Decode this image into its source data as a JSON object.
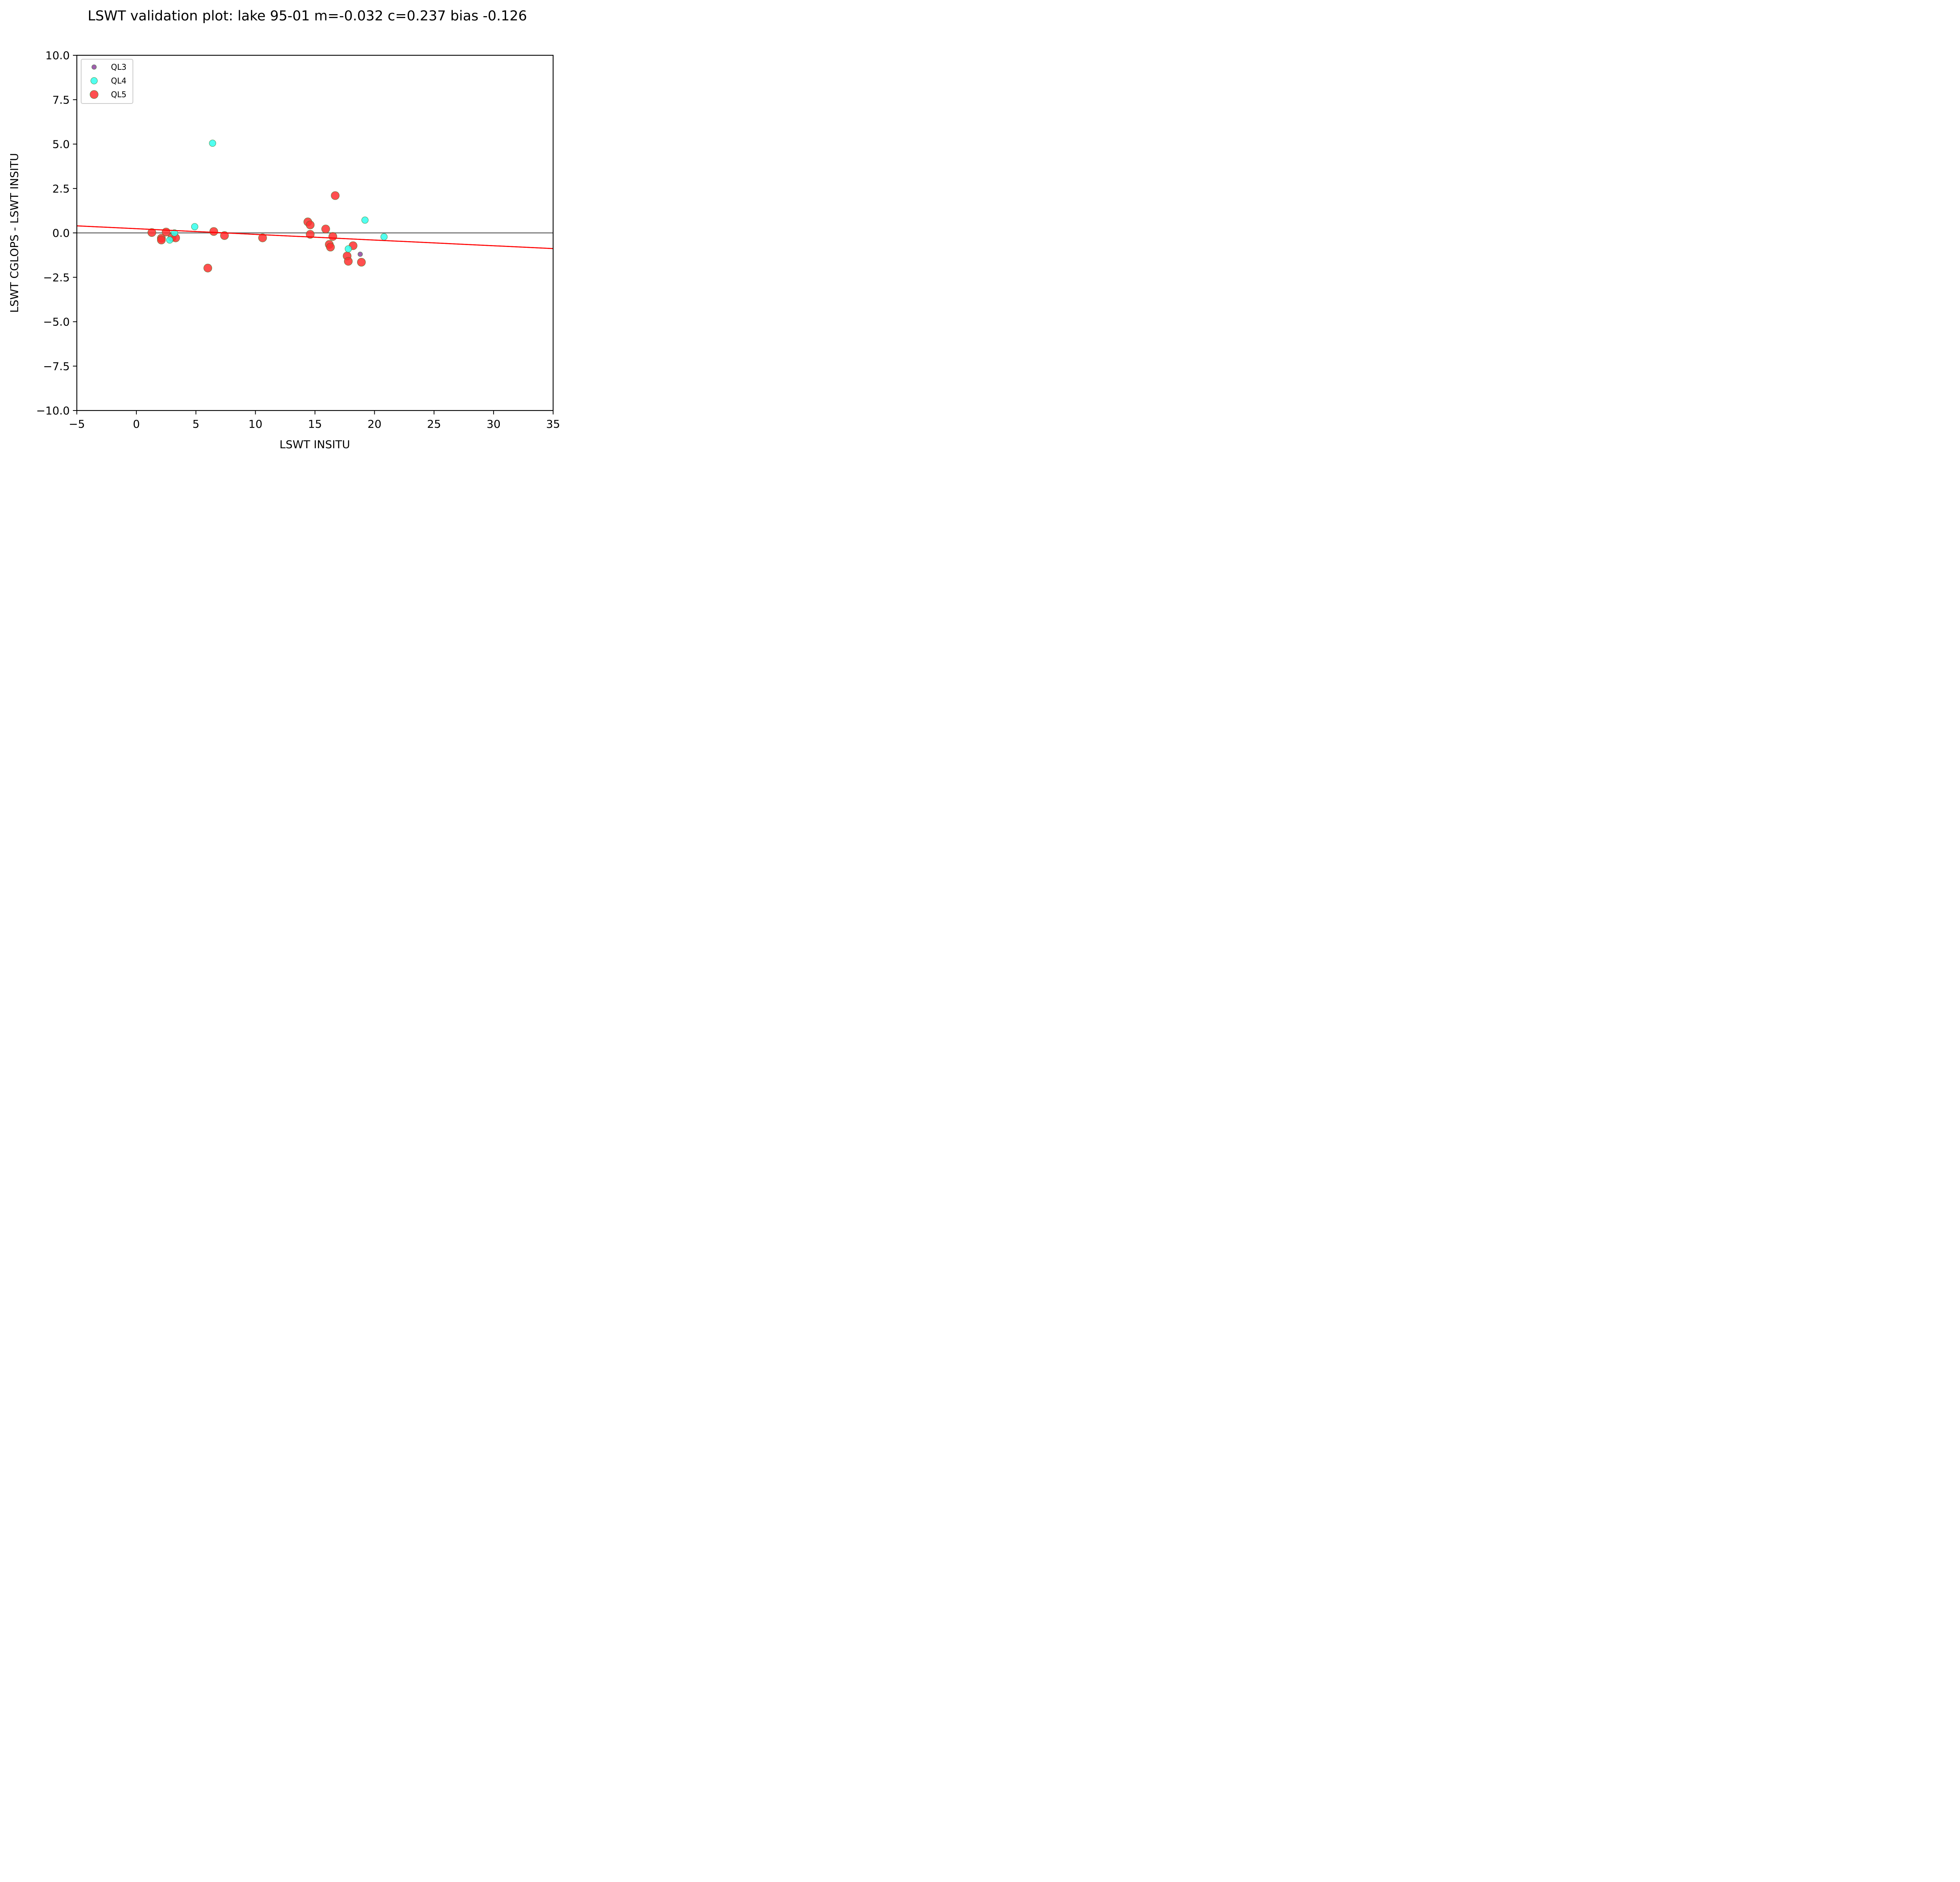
{
  "chart_data": {
    "type": "scatter",
    "title": "LSWT validation plot: lake 95-01 m=-0.032 c=0.237 bias -0.126",
    "xlabel": "LSWT INSITU",
    "ylabel": "LSWT CGLOPS - LSWT INSITU",
    "xlim": [
      -5,
      35
    ],
    "ylim": [
      -10,
      10
    ],
    "xticks": [
      -5,
      0,
      5,
      10,
      15,
      20,
      25,
      30,
      35
    ],
    "xtick_labels": [
      "−5",
      "0",
      "5",
      "10",
      "15",
      "20",
      "25",
      "30",
      "35"
    ],
    "yticks": [
      10,
      7.5,
      5,
      2.5,
      0,
      -2.5,
      -5,
      -7.5,
      -10
    ],
    "ytick_labels": [
      "10.0",
      "7.5",
      "5.0",
      "2.5",
      "0.0",
      "−2.5",
      "−5.0",
      "−7.5",
      "−10.0"
    ],
    "grid": false,
    "legend_position": "top-left",
    "reference_line": {
      "y": 0,
      "color": "#666666"
    },
    "fit_line": {
      "slope": -0.032,
      "intercept": 0.237,
      "color": "#ff0000"
    },
    "series": [
      {
        "name": "QL3",
        "color": "#8e44a0",
        "marker_size": "small",
        "points": [
          [
            18.8,
            -1.2
          ]
        ]
      },
      {
        "name": "QL4",
        "color": "#33ffee",
        "marker_size": "medium",
        "points": [
          [
            2.8,
            -0.4
          ],
          [
            3.2,
            0.0
          ],
          [
            4.9,
            0.35
          ],
          [
            6.4,
            5.05
          ],
          [
            17.8,
            -0.9
          ],
          [
            19.2,
            0.72
          ],
          [
            20.8,
            -0.22
          ]
        ]
      },
      {
        "name": "QL5",
        "color": "#ff3030",
        "marker_size": "large",
        "points": [
          [
            1.3,
            0.02
          ],
          [
            2.1,
            -0.3
          ],
          [
            2.1,
            -0.4
          ],
          [
            2.5,
            0.05
          ],
          [
            3.0,
            -0.25
          ],
          [
            3.3,
            -0.28
          ],
          [
            6.0,
            -1.98
          ],
          [
            6.5,
            0.08
          ],
          [
            7.4,
            -0.15
          ],
          [
            10.6,
            -0.28
          ],
          [
            14.4,
            0.62
          ],
          [
            14.6,
            0.45
          ],
          [
            14.6,
            -0.08
          ],
          [
            15.9,
            0.22
          ],
          [
            16.2,
            -0.65
          ],
          [
            16.3,
            -0.8
          ],
          [
            16.5,
            -0.2
          ],
          [
            16.7,
            2.1
          ],
          [
            17.7,
            -1.3
          ],
          [
            17.8,
            -1.6
          ],
          [
            18.2,
            -0.72
          ],
          [
            18.9,
            -1.65
          ]
        ]
      }
    ]
  }
}
